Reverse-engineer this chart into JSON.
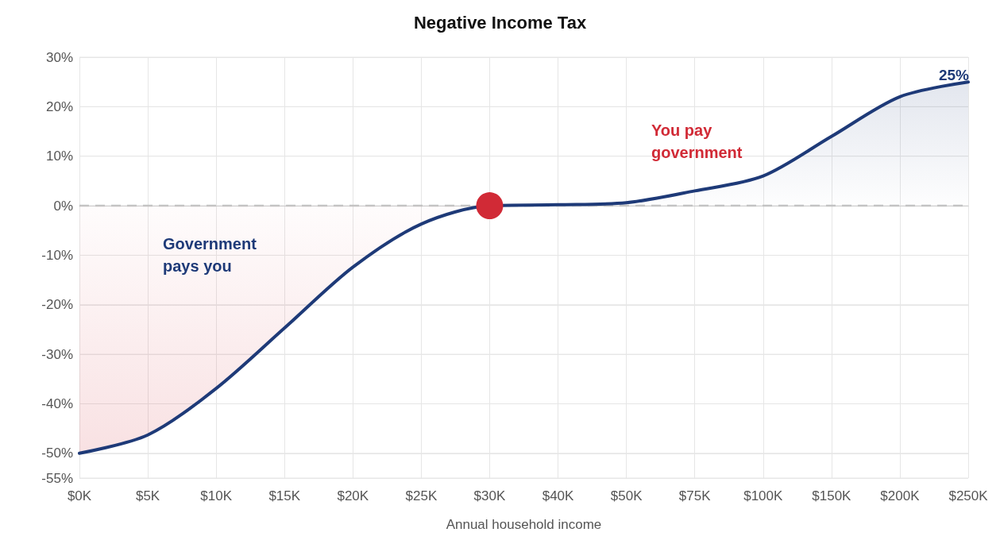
{
  "chart_data": {
    "type": "area",
    "title": "Negative Income Tax",
    "xlabel": "Annual household income",
    "categories": [
      "$0K",
      "$5K",
      "$10K",
      "$15K",
      "$20K",
      "$25K",
      "$30K",
      "$40K",
      "$50K",
      "$75K",
      "$100K",
      "$150K",
      "$200K",
      "$250K"
    ],
    "series": [
      {
        "color": "#1e3a78",
        "marker": "none",
        "values": [
          -50,
          -46.3,
          -36.9,
          -24.7,
          -12.4,
          -3.7,
          0,
          0.2,
          0.6,
          3,
          6,
          14,
          22,
          25
        ],
        "value_labels": [
          null,
          null,
          null,
          null,
          null,
          null,
          null,
          null,
          null,
          null,
          null,
          null,
          null,
          "25%"
        ]
      },
      {
        "type": "scatter",
        "color": "#d12a36",
        "marker": "circle",
        "x": [
          "$30K"
        ],
        "values": [
          0
        ]
      }
    ],
    "ylim": [
      -55,
      30
    ],
    "yticks": [
      {
        "value": -55,
        "label": "-55%"
      },
      {
        "value": -50,
        "label": "-50%"
      },
      {
        "value": -40,
        "label": "-40%"
      },
      {
        "value": -30,
        "label": "-30%"
      },
      {
        "value": -20,
        "label": "-20%"
      },
      {
        "value": -10,
        "label": "-10%"
      },
      {
        "value": 0,
        "label": "0%"
      },
      {
        "value": 10,
        "label": "10%"
      },
      {
        "value": 20,
        "label": "20%"
      },
      {
        "value": 30,
        "label": "30%"
      }
    ],
    "ref_lines": [
      {
        "axis": "y",
        "value": 0,
        "color": "#c4c4c4",
        "line_style": "dashed"
      }
    ],
    "annotations": [
      "Government pays you",
      "You pay government"
    ],
    "grid": true,
    "line_style": "solid"
  }
}
